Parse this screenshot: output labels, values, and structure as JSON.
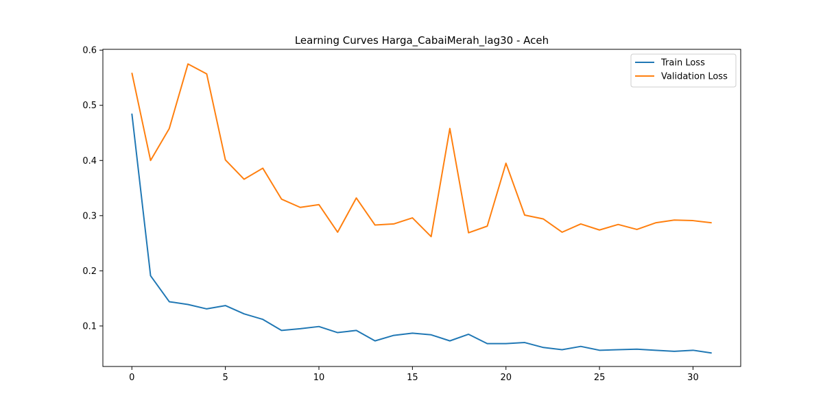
{
  "chart_data": {
    "type": "line",
    "title": "Learning Curves Harga_CabaiMerah_lag30 - Aceh",
    "xlabel": "",
    "ylabel": "",
    "xlim": [
      -1.55,
      32.55
    ],
    "ylim": [
      0.0266,
      0.6015
    ],
    "xticks": [
      0,
      5,
      10,
      15,
      20,
      25,
      30
    ],
    "xtick_labels": [
      "0",
      "5",
      "10",
      "15",
      "20",
      "25",
      "30"
    ],
    "yticks": [
      0.1,
      0.2,
      0.3,
      0.4,
      0.5,
      0.6
    ],
    "ytick_labels": [
      "0.1",
      "0.2",
      "0.3",
      "0.4",
      "0.5",
      "0.6"
    ],
    "grid": false,
    "legend_position": "upper right",
    "x": [
      0,
      1,
      2,
      3,
      4,
      5,
      6,
      7,
      8,
      9,
      10,
      11,
      12,
      13,
      14,
      15,
      16,
      17,
      18,
      19,
      20,
      21,
      22,
      23,
      24,
      25,
      26,
      27,
      28,
      29,
      30,
      31
    ],
    "series": [
      {
        "name": "Train Loss",
        "color": "#1f77b4",
        "values": [
          0.485,
          0.191,
          0.144,
          0.139,
          0.131,
          0.137,
          0.122,
          0.112,
          0.092,
          0.095,
          0.099,
          0.088,
          0.092,
          0.073,
          0.083,
          0.087,
          0.084,
          0.073,
          0.085,
          0.068,
          0.068,
          0.07,
          0.061,
          0.057,
          0.063,
          0.056,
          0.057,
          0.058,
          0.056,
          0.054,
          0.056,
          0.051
        ]
      },
      {
        "name": "Validation Loss",
        "color": "#ff7f0e",
        "values": [
          0.559,
          0.4,
          0.458,
          0.575,
          0.557,
          0.401,
          0.366,
          0.386,
          0.33,
          0.315,
          0.32,
          0.27,
          0.332,
          0.283,
          0.285,
          0.296,
          0.262,
          0.458,
          0.269,
          0.281,
          0.395,
          0.301,
          0.294,
          0.27,
          0.285,
          0.274,
          0.284,
          0.275,
          0.287,
          0.292,
          0.291,
          0.287
        ]
      }
    ]
  }
}
